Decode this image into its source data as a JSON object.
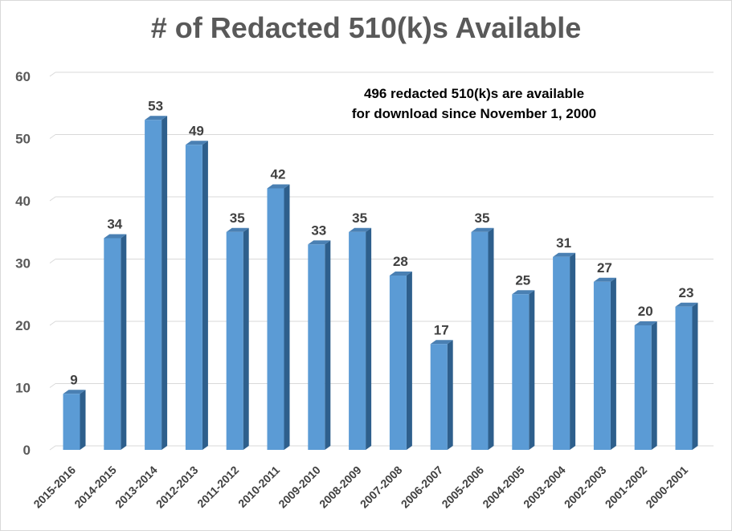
{
  "chart_data": {
    "type": "bar",
    "title": "# of Redacted 510(k)s Available",
    "annotation": [
      "496 redacted  510(k)s are available",
      "for download since November 1, 2000"
    ],
    "categories": [
      "2015-2016",
      "2014-2015",
      "2013-2014",
      "2012-2013",
      "2011-2012",
      "2010-2011",
      "2009-2010",
      "2008-2009",
      "2007-2008",
      "2006-2007",
      "2005-2006",
      "2004-2005",
      "2003-2004",
      "2002-2003",
      "2001-2002",
      "2000-2001"
    ],
    "values": [
      9,
      34,
      53,
      49,
      35,
      42,
      33,
      35,
      28,
      17,
      35,
      25,
      31,
      27,
      20,
      23
    ],
    "ylim": [
      0,
      60
    ],
    "yticks": [
      0,
      10,
      20,
      30,
      40,
      50,
      60
    ],
    "grid": true,
    "legend": "none",
    "bar_color": "#5b9bd5",
    "bar_side_color": "#2e5f8c",
    "bar_top_color": "#4a80b3"
  }
}
